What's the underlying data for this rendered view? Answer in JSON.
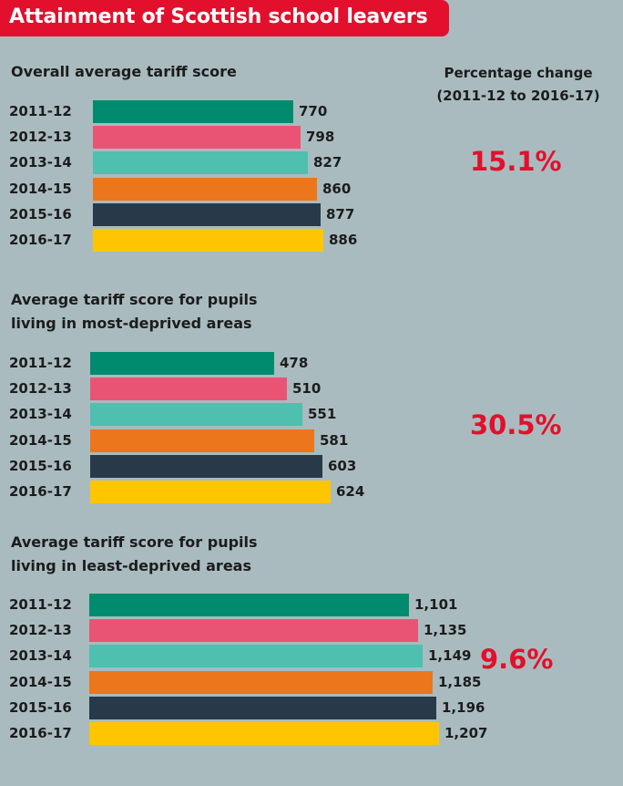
{
  "title": "Attainment of Scottish school leavers",
  "pct_header": {
    "line1": "Percentage change",
    "line2": "(2011-12 to 2016-17)"
  },
  "colors": {
    "title_bg": "#e2102c",
    "pct_text": "#e2102c",
    "bars": [
      "#008b6e",
      "#ea5474",
      "#4fbfaf",
      "#ec761b",
      "#283a49",
      "#ffc501"
    ]
  },
  "chart_data": [
    {
      "type": "bar",
      "orientation": "horizontal",
      "title_lines": [
        "Overall average tariff score"
      ],
      "categories": [
        "2011-12",
        "2012-13",
        "2013-14",
        "2014-15",
        "2015-16",
        "2016-17"
      ],
      "values": [
        770,
        798,
        827,
        860,
        877,
        886
      ],
      "value_labels": [
        "770",
        "798",
        "827",
        "860",
        "877",
        "886"
      ],
      "percentage_change": "15.1%"
    },
    {
      "type": "bar",
      "orientation": "horizontal",
      "title_lines": [
        "Average tariff score for pupils",
        "living in most-deprived areas"
      ],
      "categories": [
        "2011-12",
        "2012-13",
        "2013-14",
        "2014-15",
        "2015-16",
        "2016-17"
      ],
      "values": [
        478,
        510,
        551,
        581,
        603,
        624
      ],
      "value_labels": [
        "478",
        "510",
        "551",
        "581",
        "603",
        "624"
      ],
      "percentage_change": "30.5%"
    },
    {
      "type": "bar",
      "orientation": "horizontal",
      "title_lines": [
        "Average tariff score for pupils",
        "living in least-deprived areas"
      ],
      "categories": [
        "2011-12",
        "2012-13",
        "2013-14",
        "2014-15",
        "2015-16",
        "2016-17"
      ],
      "values": [
        1101,
        1135,
        1149,
        1185,
        1196,
        1207
      ],
      "value_labels": [
        "1,101",
        "1,135",
        "1,149",
        "1,185",
        "1,196",
        "1,207"
      ],
      "percentage_change": "9.6%"
    }
  ]
}
